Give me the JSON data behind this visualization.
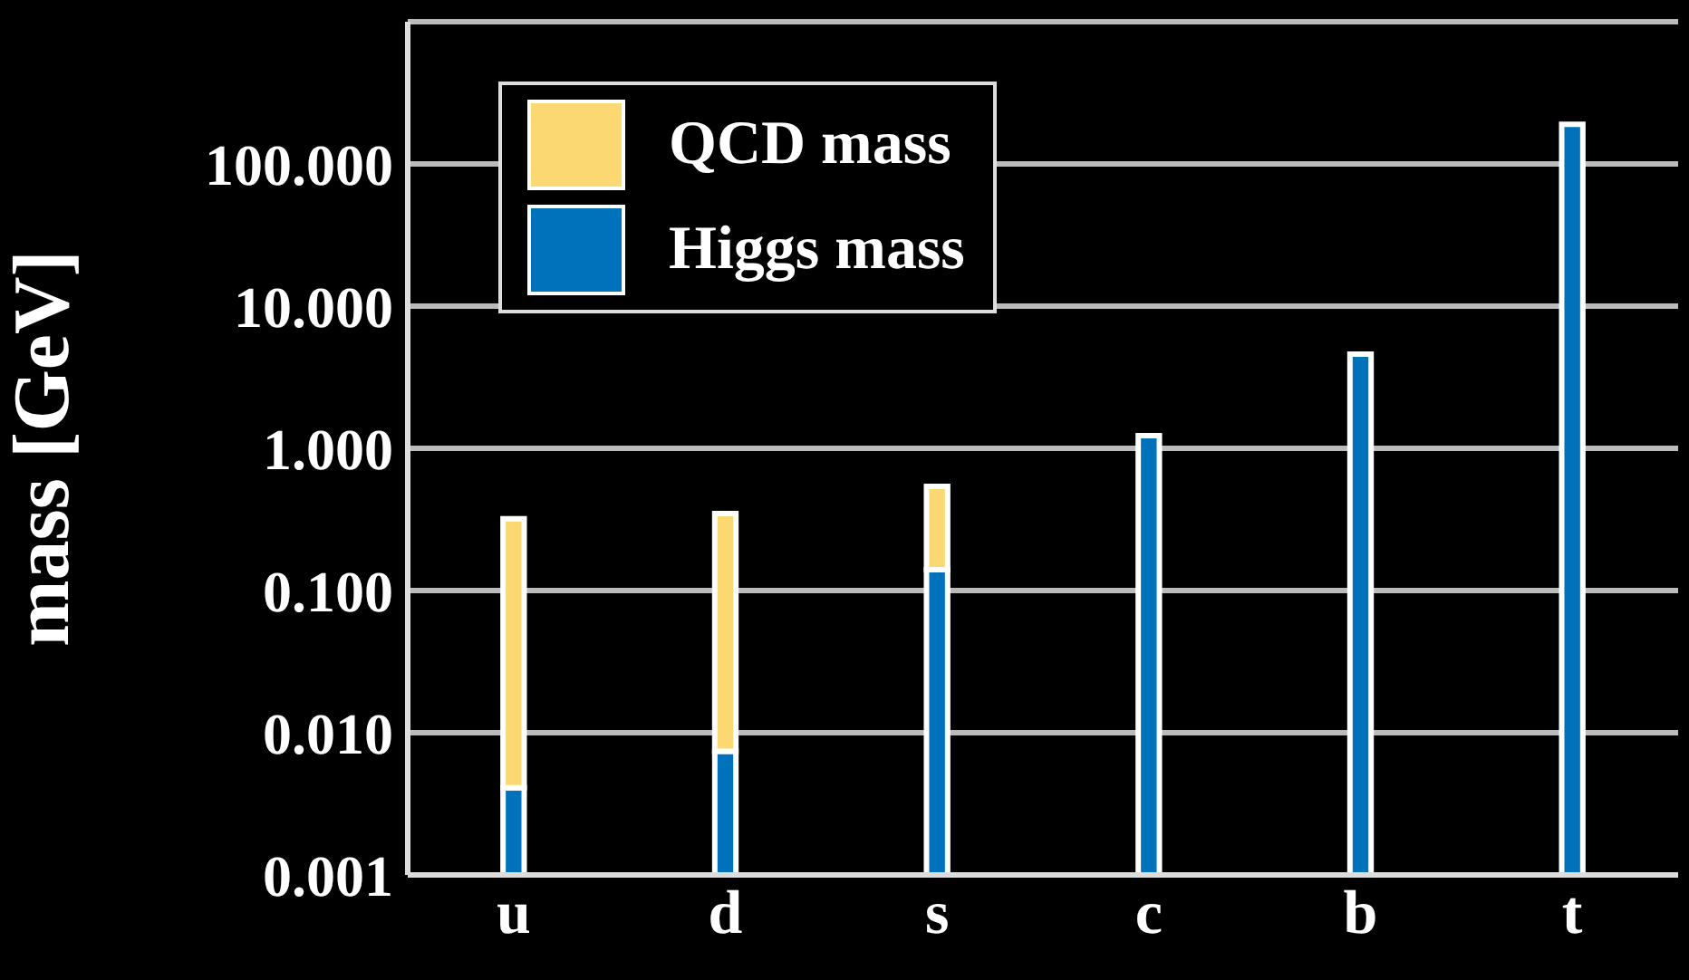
{
  "chart_data": {
    "type": "bar",
    "ylabel": "mass [GeV]",
    "categories": [
      "u",
      "d",
      "s",
      "c",
      "b",
      "t"
    ],
    "series": [
      {
        "name": "Higgs mass",
        "color": "#0071bb",
        "values": [
          0.0041,
          0.0074,
          0.14,
          1.23,
          4.6,
          190
        ]
      },
      {
        "name": "QCD mass",
        "color": "#fbd872",
        "values": [
          0.316,
          0.34,
          0.4,
          null,
          null,
          null
        ]
      }
    ],
    "stacked": true,
    "log": "y",
    "ylim": [
      0.001,
      1000
    ],
    "yticks": [
      {
        "value": 0.001,
        "label": "0.001"
      },
      {
        "value": 0.01,
        "label": "0.010"
      },
      {
        "value": 0.1,
        "label": "0.100"
      },
      {
        "value": 1,
        "label": "1.000"
      },
      {
        "value": 10,
        "label": "10.000"
      },
      {
        "value": 100,
        "label": "100.000"
      }
    ],
    "grid": "y",
    "legend": "top left"
  }
}
